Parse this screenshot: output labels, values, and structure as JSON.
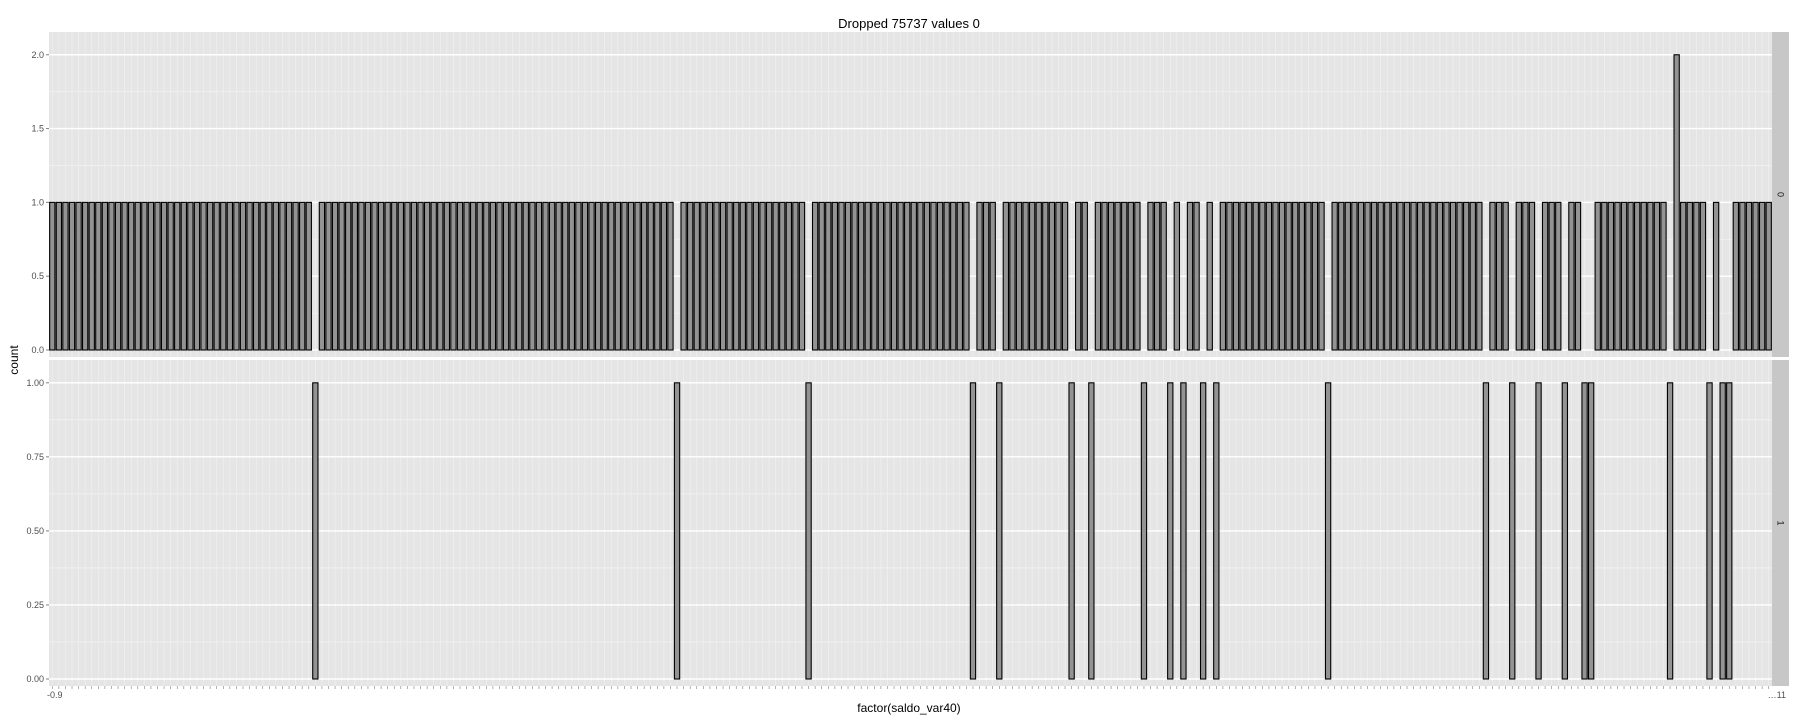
{
  "chart_data": {
    "type": "bar",
    "title": "Dropped 75737 values 0",
    "xlabel": "factor(saldo_var40)",
    "ylabel": "count",
    "legend": "none",
    "grid": true,
    "n_categories": 262,
    "facets": [
      {
        "label": "0",
        "ylim": [
          0,
          2.1
        ],
        "y_ticks": [
          "0.0",
          "0.5",
          "1.0",
          "1.5",
          "2.0"
        ],
        "default_count": 1,
        "zero_count_categories": [
          40,
          95,
          115,
          140,
          144,
          155,
          158,
          166,
          170,
          172,
          175,
          177,
          194,
          218,
          222,
          226,
          230,
          233,
          234,
          246,
          252,
          254,
          255
        ],
        "count_overrides": [
          {
            "category_index": 247,
            "count": 2
          }
        ]
      },
      {
        "label": "1",
        "ylim": [
          0,
          1.05
        ],
        "y_ticks": [
          "0.00",
          "0.25",
          "0.50",
          "0.75",
          "1.00"
        ],
        "default_count": 0,
        "one_count_categories": [
          40,
          95,
          115,
          140,
          144,
          155,
          158,
          166,
          170,
          172,
          175,
          177,
          194,
          218,
          222,
          226,
          230,
          233,
          234,
          246,
          252,
          254,
          255
        ]
      }
    ],
    "visible_x_tick_labels": {
      "first": "-0.9",
      "last": "…11"
    }
  }
}
